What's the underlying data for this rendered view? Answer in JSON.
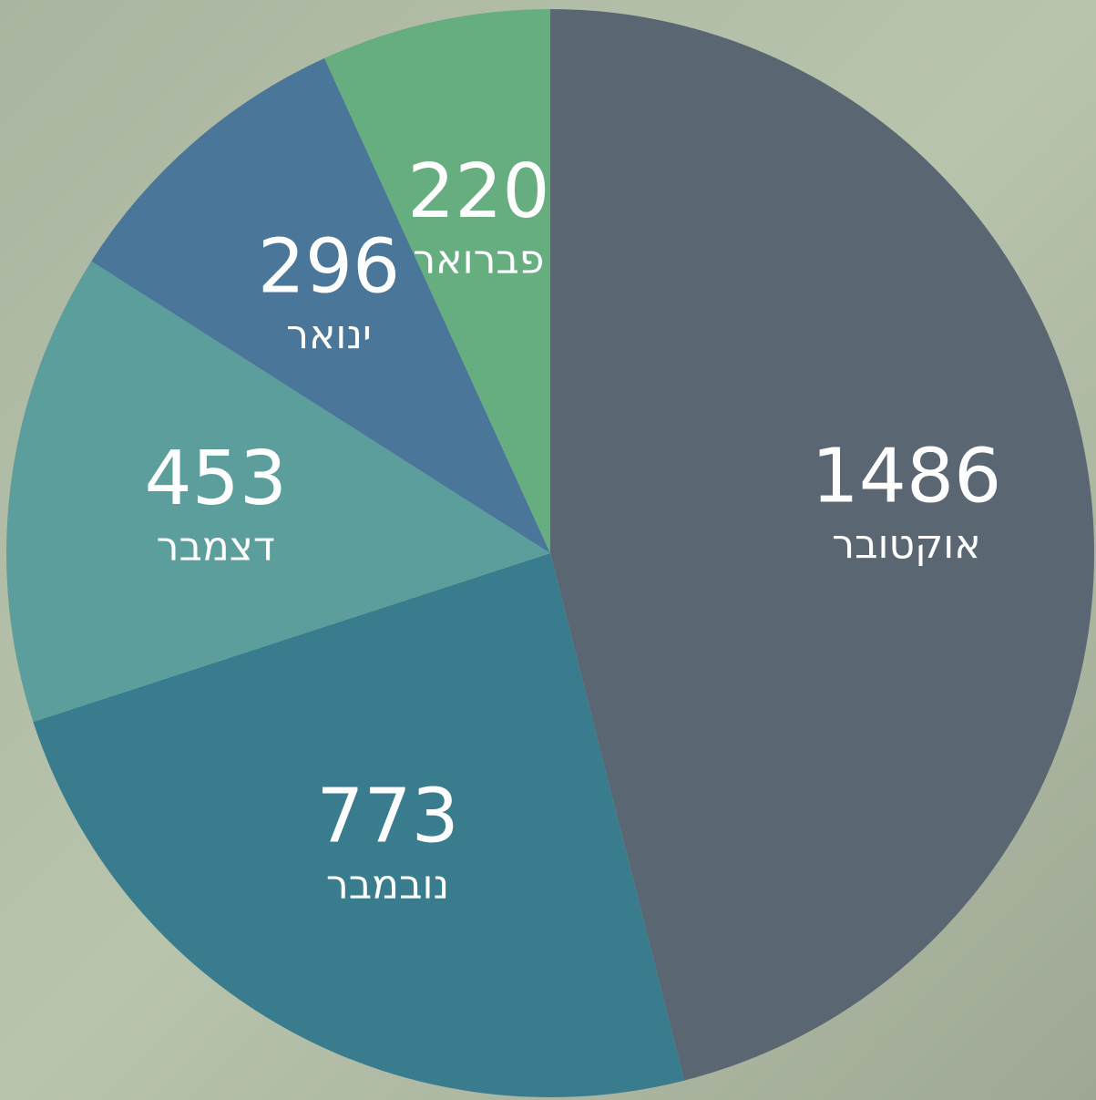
{
  "chart_data": {
    "type": "pie",
    "categories": [
      "אוקטובר",
      "נובמבר",
      "דצמבר",
      "ינואר",
      "פברואר"
    ],
    "values": [
      1486,
      773,
      453,
      296,
      220
    ],
    "colors": [
      "#5b6673",
      "#387c8e",
      "#5b9e9c",
      "#4a7699",
      "#66ae80"
    ]
  }
}
